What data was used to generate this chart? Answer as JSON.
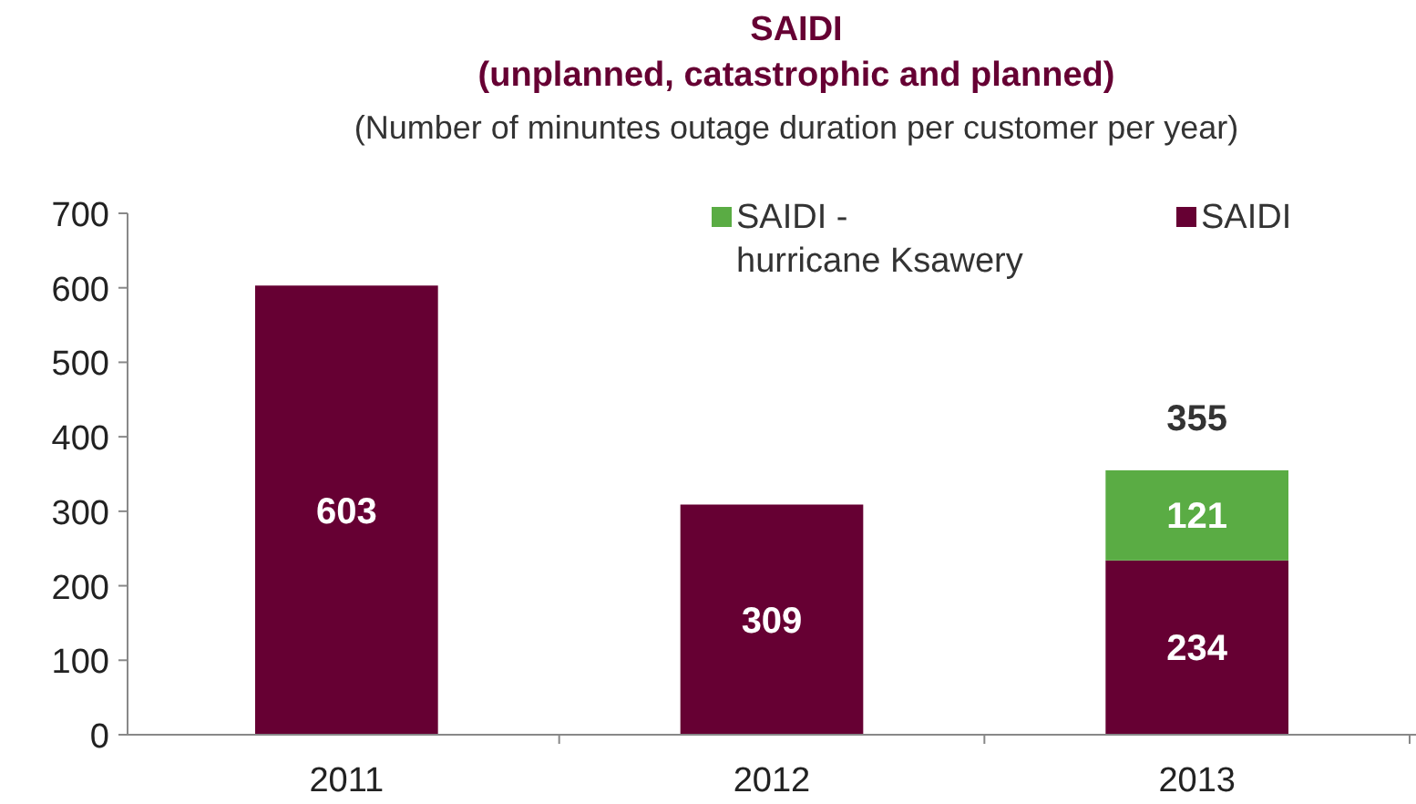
{
  "chart_data": {
    "type": "bar",
    "title": "SAIDI\n(unplanned, catastrophic and planned)",
    "subtitle": "(Number of minuntes outage duration per customer per year)",
    "categories": [
      "2011",
      "2012",
      "2013"
    ],
    "series": [
      {
        "name": "SAIDI",
        "color": "#660033",
        "values": [
          603,
          309,
          234
        ]
      },
      {
        "name": "SAIDI - hurricane Ksawery",
        "color": "#5aac44",
        "values": [
          null,
          null,
          121
        ]
      }
    ],
    "stacked": true,
    "data_labels": true,
    "totals": [
      null,
      null,
      "355"
    ],
    "ylim": [
      0,
      700
    ],
    "yticks": [
      0,
      100,
      200,
      300,
      400,
      500,
      600,
      700
    ],
    "grid": false,
    "legend": "top right"
  }
}
